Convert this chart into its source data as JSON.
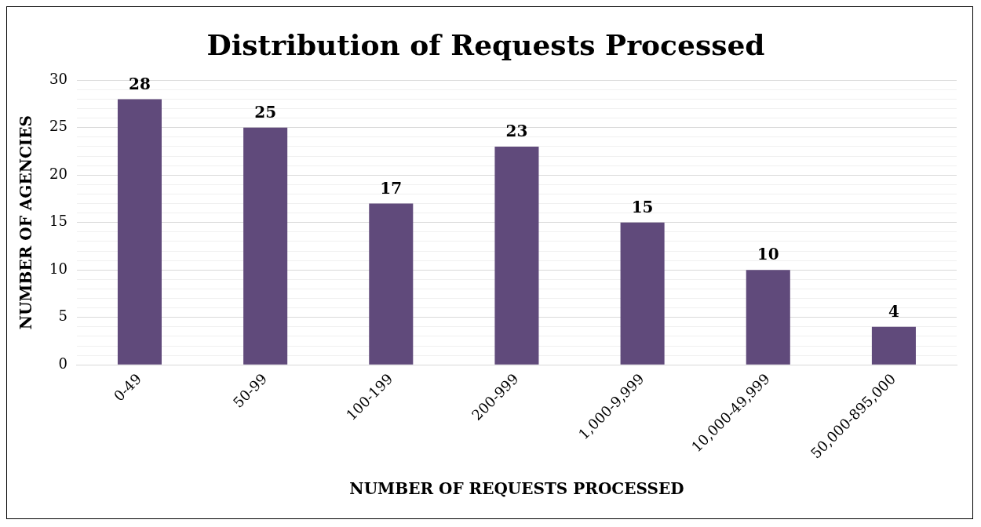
{
  "chart_data": {
    "type": "bar",
    "title": "Distribution of Requests Processed",
    "xlabel": "NUMBER OF REQUESTS PROCESSED",
    "ylabel": "NUMBER OF AGENCIES",
    "categories": [
      "0-49",
      "50-99",
      "100-199",
      "200-999",
      "1,000-9,999",
      "10,000-49,999",
      "50,000-895,000"
    ],
    "values": [
      28,
      25,
      17,
      23,
      15,
      10,
      4
    ],
    "color": "#604a7b",
    "data_labels": true,
    "grid": "y",
    "legend": false,
    "ylim": [
      0,
      30
    ],
    "yticks": [
      0,
      {
        "value": 1,
        "label": null
      },
      {
        "value": 2,
        "label": null
      },
      {
        "value": 3,
        "label": null
      },
      {
        "value": 4,
        "label": null
      },
      5,
      {
        "value": 6,
        "label": null
      },
      {
        "value": 7,
        "label": null
      },
      {
        "value": 8,
        "label": null
      },
      {
        "value": 9,
        "label": null
      },
      10,
      {
        "value": 11,
        "label": null
      },
      {
        "value": 12,
        "label": null
      },
      {
        "value": 13,
        "label": null
      },
      {
        "value": 14,
        "label": null
      },
      15,
      {
        "value": 16,
        "label": null
      },
      {
        "value": 17,
        "label": null
      },
      {
        "value": 18,
        "label": null
      },
      {
        "value": 19,
        "label": null
      },
      20,
      {
        "value": 21,
        "label": null
      },
      {
        "value": 22,
        "label": null
      },
      {
        "value": 23,
        "label": null
      },
      {
        "value": 24,
        "label": null
      },
      25,
      {
        "value": 26,
        "label": null
      },
      {
        "value": 27,
        "label": null
      },
      {
        "value": 28,
        "label": null
      },
      {
        "value": 29,
        "label": null
      },
      30
    ]
  }
}
